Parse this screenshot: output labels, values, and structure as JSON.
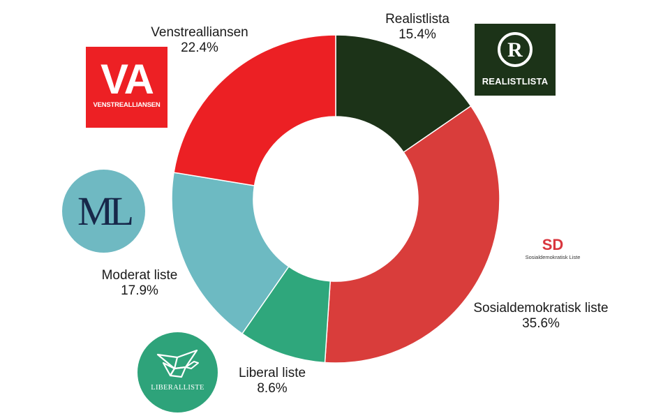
{
  "chart_data": {
    "type": "pie",
    "variant": "donut",
    "start_angle_deg": 0,
    "direction": "clockwise",
    "slices": [
      {
        "label": "Realistlista",
        "value": 15.4,
        "value_label": "15.4%",
        "color": "#1c3318"
      },
      {
        "label": "Sosialdemokratisk liste",
        "value": 35.6,
        "value_label": "35.6%",
        "color": "#d93d3b"
      },
      {
        "label": "Liberal liste",
        "value": 8.6,
        "value_label": "8.6%",
        "color": "#2fa77c"
      },
      {
        "label": "Moderat liste",
        "value": 17.9,
        "value_label": "17.9%",
        "color": "#6dbac2"
      },
      {
        "label": "Venstrealliansen",
        "value": 22.4,
        "value_label": "22.4%",
        "color": "#ec2024"
      }
    ]
  },
  "logos": {
    "va": {
      "big": "VA",
      "small": "VENSTREALLIANSEN",
      "color": "#ed2024"
    },
    "realistlista": {
      "mark": "R",
      "name": "REALISTLISTA",
      "color": "#1c3318"
    },
    "moderat": {
      "mark": "ML",
      "color": "#6fb9c2"
    },
    "sd": {
      "mark": "SD",
      "sub": "Sosialdemokratisk Liste",
      "color": "#d9363e"
    },
    "liberal": {
      "name": "LIBERALLISTE",
      "color": "#2ea37a"
    }
  }
}
